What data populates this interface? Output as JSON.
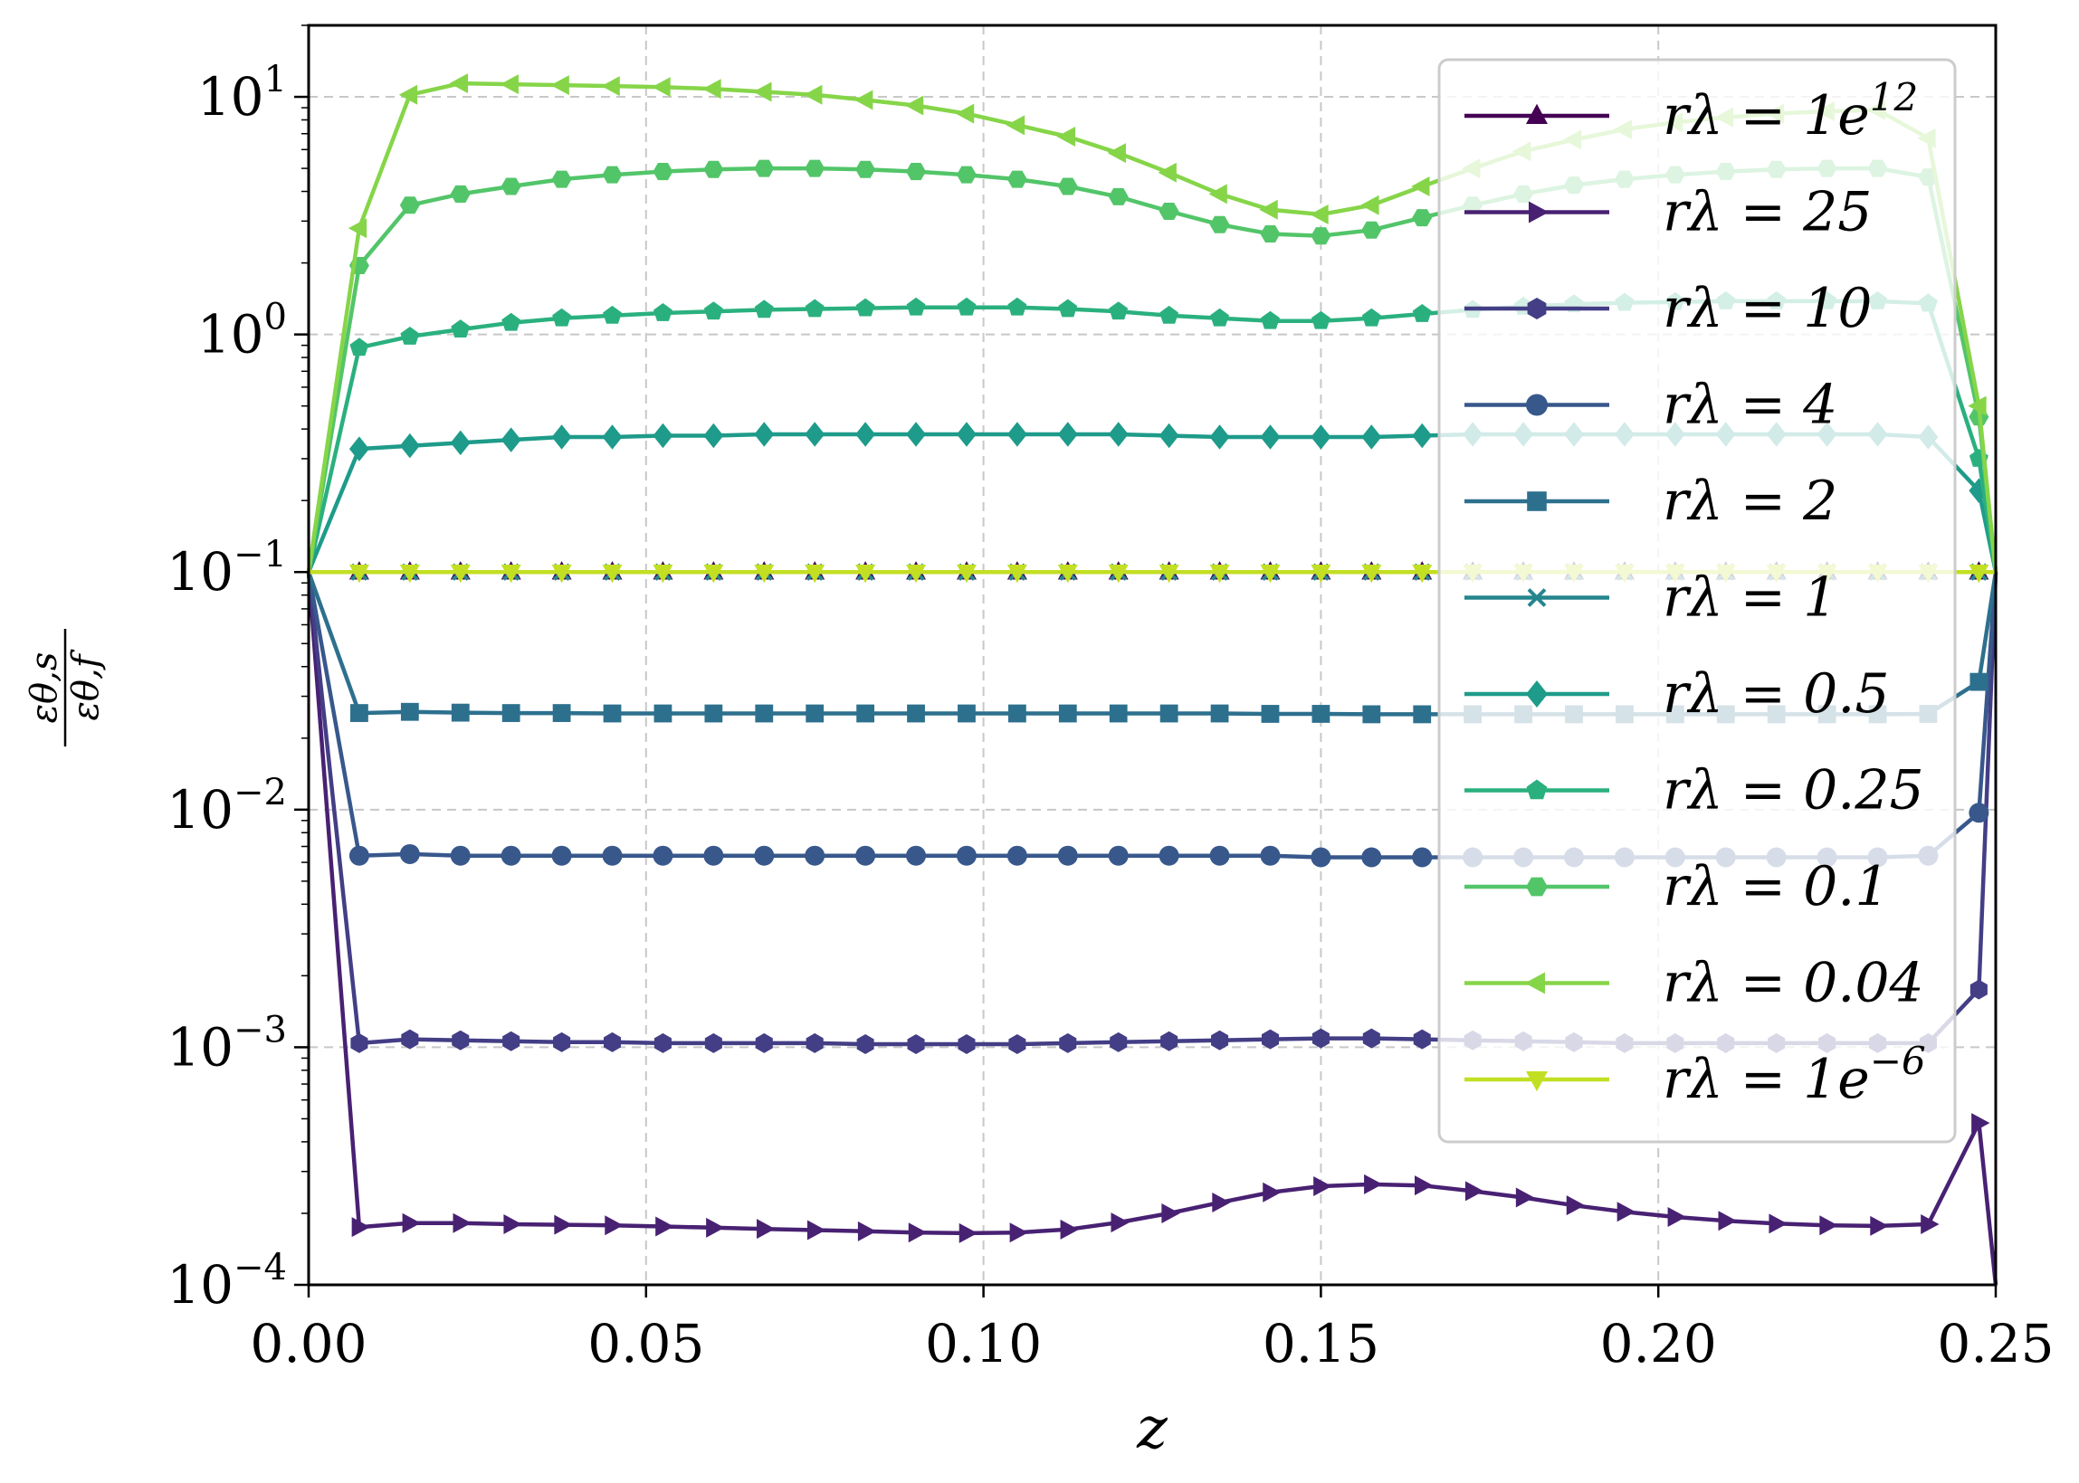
{
  "chart_data": {
    "type": "line",
    "xlabel": "z",
    "ylabel_num": "εθ,s",
    "ylabel_den": "εθ,f",
    "xlim": [
      0,
      0.25
    ],
    "ylim": [
      0.0001,
      20
    ],
    "yscale": "log",
    "grid": true,
    "legend_position": "upper-right",
    "x_ticks": [
      "0.00",
      "0.05",
      "0.10",
      "0.15",
      "0.20",
      "0.25"
    ],
    "y_ticks": [
      {
        "base": "10",
        "exp": "1"
      },
      {
        "base": "10",
        "exp": "0"
      },
      {
        "base": "10",
        "exp": "−1"
      },
      {
        "base": "10",
        "exp": "−2"
      },
      {
        "base": "10",
        "exp": "−3"
      },
      {
        "base": "10",
        "exp": "−4"
      }
    ],
    "x": [
      0,
      0.0075,
      0.015,
      0.0225,
      0.03,
      0.0375,
      0.045,
      0.0525,
      0.06,
      0.0675,
      0.075,
      0.0825,
      0.09,
      0.0975,
      0.105,
      0.1125,
      0.12,
      0.1275,
      0.135,
      0.1425,
      0.15,
      0.1575,
      0.165,
      0.1725,
      0.18,
      0.1875,
      0.195,
      0.2025,
      0.21,
      0.2175,
      0.225,
      0.2325,
      0.24,
      0.2475,
      0.25
    ],
    "series": [
      {
        "name_base": "rλ = 1e",
        "name_sup": "12",
        "color": "#440154",
        "marker": "triangle-up",
        "values": [
          0.1,
          0.1,
          0.1,
          0.1,
          0.1,
          0.1,
          0.1,
          0.1,
          0.1,
          0.1,
          0.1,
          0.1,
          0.1,
          0.1,
          0.1,
          0.1,
          0.1,
          0.1,
          0.1,
          0.1,
          0.1,
          0.1,
          0.1,
          0.1,
          0.1,
          0.1,
          0.1,
          0.1,
          0.1,
          0.1,
          0.1,
          0.1,
          0.1,
          0.1,
          0.1
        ]
      },
      {
        "name_base": "rλ = 25",
        "name_sup": "",
        "color": "#482173",
        "marker": "triangle-right",
        "values": [
          0.1,
          0.000175,
          0.000182,
          0.000182,
          0.00018,
          0.000179,
          0.000178,
          0.000176,
          0.000174,
          0.000172,
          0.00017,
          0.000168,
          0.000166,
          0.000165,
          0.000166,
          0.000171,
          0.000183,
          0.0002,
          0.000222,
          0.000245,
          0.00026,
          0.000265,
          0.000262,
          0.000248,
          0.000233,
          0.000216,
          0.000203,
          0.000193,
          0.000186,
          0.000181,
          0.000178,
          0.000177,
          0.00018,
          0.00048,
          0.0001
        ]
      },
      {
        "name_base": "rλ = 10",
        "name_sup": "",
        "color": "#433e85",
        "marker": "hexagon",
        "values": [
          0.1,
          0.00104,
          0.00108,
          0.00107,
          0.00106,
          0.00105,
          0.00105,
          0.00104,
          0.00104,
          0.00104,
          0.00104,
          0.00103,
          0.00103,
          0.00103,
          0.00103,
          0.00104,
          0.00105,
          0.00106,
          0.00107,
          0.00108,
          0.00109,
          0.00109,
          0.00108,
          0.00107,
          0.00106,
          0.00105,
          0.00104,
          0.00104,
          0.00104,
          0.00104,
          0.00104,
          0.00104,
          0.00104,
          0.00175,
          0.1
        ]
      },
      {
        "name_base": "rλ = 4",
        "name_sup": "",
        "color": "#38588c",
        "marker": "circle",
        "values": [
          0.1,
          0.0064,
          0.0065,
          0.0064,
          0.0064,
          0.0064,
          0.0064,
          0.0064,
          0.0064,
          0.0064,
          0.0064,
          0.0064,
          0.0064,
          0.0064,
          0.0064,
          0.0064,
          0.0064,
          0.0064,
          0.0064,
          0.0064,
          0.0063,
          0.0063,
          0.0063,
          0.0063,
          0.0063,
          0.0063,
          0.0063,
          0.0063,
          0.0063,
          0.0063,
          0.0063,
          0.0063,
          0.0064,
          0.0097,
          0.1
        ]
      },
      {
        "name_base": "rλ = 2",
        "name_sup": "",
        "color": "#2d708e",
        "marker": "square",
        "values": [
          0.1,
          0.0255,
          0.0258,
          0.0256,
          0.0255,
          0.0255,
          0.0254,
          0.0254,
          0.0254,
          0.0254,
          0.0254,
          0.0254,
          0.0254,
          0.0254,
          0.0254,
          0.0254,
          0.0254,
          0.0254,
          0.0254,
          0.0253,
          0.0253,
          0.0252,
          0.0252,
          0.0252,
          0.0252,
          0.0252,
          0.0252,
          0.0252,
          0.0252,
          0.0252,
          0.0252,
          0.0252,
          0.0253,
          0.0345,
          0.1
        ]
      },
      {
        "name_base": "rλ = 1",
        "name_sup": "",
        "color": "#25858e",
        "marker": "x",
        "values": [
          0.1,
          0.1,
          0.1,
          0.1,
          0.1,
          0.1,
          0.1,
          0.1,
          0.1,
          0.1,
          0.1,
          0.1,
          0.1,
          0.1,
          0.1,
          0.1,
          0.1,
          0.1,
          0.1,
          0.1,
          0.1,
          0.1,
          0.1,
          0.1,
          0.1,
          0.1,
          0.1,
          0.1,
          0.1,
          0.1,
          0.1,
          0.1,
          0.1,
          0.1,
          0.1
        ]
      },
      {
        "name_base": "rλ = 0.5",
        "name_sup": "",
        "color": "#1e9b8a",
        "marker": "diamond",
        "values": [
          0.1,
          0.33,
          0.34,
          0.35,
          0.36,
          0.37,
          0.37,
          0.375,
          0.375,
          0.38,
          0.38,
          0.38,
          0.38,
          0.38,
          0.38,
          0.38,
          0.38,
          0.375,
          0.37,
          0.37,
          0.37,
          0.37,
          0.375,
          0.38,
          0.38,
          0.38,
          0.38,
          0.38,
          0.38,
          0.38,
          0.38,
          0.38,
          0.37,
          0.22,
          0.1
        ]
      },
      {
        "name_base": "rλ = 0.25",
        "name_sup": "",
        "color": "#2ab07f",
        "marker": "pentagon",
        "values": [
          0.1,
          0.88,
          0.98,
          1.05,
          1.12,
          1.17,
          1.2,
          1.23,
          1.25,
          1.27,
          1.28,
          1.29,
          1.3,
          1.3,
          1.3,
          1.28,
          1.25,
          1.2,
          1.17,
          1.14,
          1.14,
          1.17,
          1.22,
          1.27,
          1.31,
          1.34,
          1.36,
          1.37,
          1.38,
          1.38,
          1.38,
          1.38,
          1.35,
          0.3,
          0.1
        ]
      },
      {
        "name_base": "rλ = 0.1",
        "name_sup": "",
        "color": "#52c569",
        "marker": "hexagon2",
        "values": [
          0.1,
          1.95,
          3.5,
          3.9,
          4.2,
          4.5,
          4.7,
          4.85,
          4.95,
          5.0,
          5.0,
          4.95,
          4.85,
          4.7,
          4.5,
          4.2,
          3.8,
          3.3,
          2.9,
          2.65,
          2.6,
          2.75,
          3.1,
          3.5,
          3.9,
          4.25,
          4.5,
          4.7,
          4.85,
          4.95,
          5.0,
          5.0,
          4.6,
          0.45,
          0.1
        ]
      },
      {
        "name_base": "rλ = 0.04",
        "name_sup": "",
        "color": "#86d549",
        "marker": "triangle-left",
        "values": [
          0.1,
          2.8,
          10.2,
          11.4,
          11.3,
          11.2,
          11.1,
          11.0,
          10.8,
          10.5,
          10.2,
          9.7,
          9.2,
          8.5,
          7.6,
          6.8,
          5.8,
          4.8,
          3.9,
          3.35,
          3.2,
          3.5,
          4.2,
          5.0,
          5.9,
          6.6,
          7.3,
          7.8,
          8.2,
          8.5,
          8.7,
          8.8,
          6.7,
          0.5,
          0.1
        ]
      },
      {
        "name_base": "rλ = 1e",
        "name_sup": "−6",
        "color": "#c2df23",
        "marker": "triangle-down",
        "values": [
          0.1,
          0.1,
          0.1,
          0.1,
          0.1,
          0.1,
          0.1,
          0.1,
          0.1,
          0.1,
          0.1,
          0.1,
          0.1,
          0.1,
          0.1,
          0.1,
          0.1,
          0.1,
          0.1,
          0.1,
          0.1,
          0.1,
          0.1,
          0.1,
          0.1,
          0.1,
          0.1,
          0.1,
          0.1,
          0.1,
          0.1,
          0.1,
          0.1,
          0.1,
          0.1
        ]
      }
    ]
  }
}
